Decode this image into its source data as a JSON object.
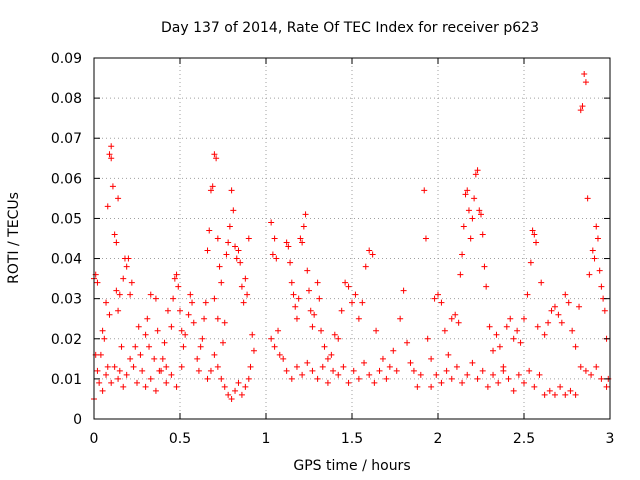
{
  "chart_data": {
    "type": "scatter",
    "title": "Day 137 of 2014, Rate Of TEC Index for receiver p623",
    "xlabel": "GPS time / hours",
    "ylabel": "ROTI / TECUs",
    "xlim": [
      0,
      3
    ],
    "ylim": [
      0,
      0.09
    ],
    "x_ticks": [
      0,
      0.5,
      1,
      1.5,
      2,
      2.5,
      3
    ],
    "x_tick_labels": [
      "0",
      "0.5",
      "1",
      "1.5",
      "2",
      "2.5",
      "3"
    ],
    "y_ticks": [
      0,
      0.01,
      0.02,
      0.03,
      0.04,
      0.05,
      0.06,
      0.07,
      0.08,
      0.09
    ],
    "y_tick_labels": [
      "0",
      "0.01",
      "0.02",
      "0.03",
      "0.04",
      "0.05",
      "0.06",
      "0.07",
      "0.08",
      "0.09"
    ],
    "grid": true,
    "marker": "plus",
    "color": "#ff0000",
    "series": [
      {
        "name": "ROTI",
        "points": [
          [
            0.0,
            0.005
          ],
          [
            0.0,
            0.035
          ],
          [
            0.01,
            0.036
          ],
          [
            0.02,
            0.034
          ],
          [
            0.01,
            0.016
          ],
          [
            0.02,
            0.012
          ],
          [
            0.03,
            0.009
          ],
          [
            0.04,
            0.016
          ],
          [
            0.05,
            0.022
          ],
          [
            0.06,
            0.02
          ],
          [
            0.07,
            0.029
          ],
          [
            0.05,
            0.007
          ],
          [
            0.07,
            0.011
          ],
          [
            0.08,
            0.013
          ],
          [
            0.09,
            0.026
          ],
          [
            0.08,
            0.053
          ],
          [
            0.09,
            0.066
          ],
          [
            0.1,
            0.068
          ],
          [
            0.1,
            0.065
          ],
          [
            0.11,
            0.058
          ],
          [
            0.12,
            0.046
          ],
          [
            0.13,
            0.044
          ],
          [
            0.14,
            0.055
          ],
          [
            0.13,
            0.032
          ],
          [
            0.14,
            0.027
          ],
          [
            0.15,
            0.031
          ],
          [
            0.1,
            0.009
          ],
          [
            0.12,
            0.013
          ],
          [
            0.14,
            0.01
          ],
          [
            0.15,
            0.012
          ],
          [
            0.16,
            0.018
          ],
          [
            0.17,
            0.035
          ],
          [
            0.18,
            0.04
          ],
          [
            0.19,
            0.038
          ],
          [
            0.2,
            0.04
          ],
          [
            0.21,
            0.031
          ],
          [
            0.22,
            0.034
          ],
          [
            0.17,
            0.008
          ],
          [
            0.19,
            0.011
          ],
          [
            0.21,
            0.015
          ],
          [
            0.23,
            0.013
          ],
          [
            0.24,
            0.018
          ],
          [
            0.25,
            0.009
          ],
          [
            0.26,
            0.023
          ],
          [
            0.27,
            0.016
          ],
          [
            0.28,
            0.012
          ],
          [
            0.3,
            0.021
          ],
          [
            0.31,
            0.025
          ],
          [
            0.32,
            0.018
          ],
          [
            0.33,
            0.031
          ],
          [
            0.35,
            0.015
          ],
          [
            0.36,
            0.03
          ],
          [
            0.37,
            0.022
          ],
          [
            0.38,
            0.012
          ],
          [
            0.4,
            0.015
          ],
          [
            0.41,
            0.019
          ],
          [
            0.42,
            0.013
          ],
          [
            0.43,
            0.027
          ],
          [
            0.45,
            0.023
          ],
          [
            0.46,
            0.03
          ],
          [
            0.47,
            0.035
          ],
          [
            0.48,
            0.036
          ],
          [
            0.49,
            0.033
          ],
          [
            0.5,
            0.027
          ],
          [
            0.51,
            0.022
          ],
          [
            0.52,
            0.018
          ],
          [
            0.3,
            0.008
          ],
          [
            0.33,
            0.01
          ],
          [
            0.36,
            0.007
          ],
          [
            0.39,
            0.012
          ],
          [
            0.42,
            0.009
          ],
          [
            0.45,
            0.011
          ],
          [
            0.48,
            0.008
          ],
          [
            0.51,
            0.013
          ],
          [
            0.53,
            0.021
          ],
          [
            0.55,
            0.026
          ],
          [
            0.56,
            0.031
          ],
          [
            0.57,
            0.029
          ],
          [
            0.58,
            0.024
          ],
          [
            0.6,
            0.015
          ],
          [
            0.61,
            0.012
          ],
          [
            0.62,
            0.018
          ],
          [
            0.63,
            0.02
          ],
          [
            0.64,
            0.025
          ],
          [
            0.65,
            0.029
          ],
          [
            0.66,
            0.042
          ],
          [
            0.67,
            0.047
          ],
          [
            0.68,
            0.057
          ],
          [
            0.69,
            0.058
          ],
          [
            0.7,
            0.066
          ],
          [
            0.71,
            0.065
          ],
          [
            0.72,
            0.045
          ],
          [
            0.73,
            0.038
          ],
          [
            0.74,
            0.034
          ],
          [
            0.7,
            0.03
          ],
          [
            0.72,
            0.025
          ],
          [
            0.66,
            0.01
          ],
          [
            0.68,
            0.012
          ],
          [
            0.7,
            0.016
          ],
          [
            0.72,
            0.013
          ],
          [
            0.74,
            0.01
          ],
          [
            0.75,
            0.019
          ],
          [
            0.76,
            0.024
          ],
          [
            0.77,
            0.041
          ],
          [
            0.78,
            0.044
          ],
          [
            0.79,
            0.048
          ],
          [
            0.8,
            0.057
          ],
          [
            0.81,
            0.052
          ],
          [
            0.82,
            0.043
          ],
          [
            0.83,
            0.04
          ],
          [
            0.84,
            0.042
          ],
          [
            0.85,
            0.039
          ],
          [
            0.86,
            0.033
          ],
          [
            0.87,
            0.029
          ],
          [
            0.88,
            0.035
          ],
          [
            0.89,
            0.031
          ],
          [
            0.9,
            0.045
          ],
          [
            0.76,
            0.008
          ],
          [
            0.78,
            0.006
          ],
          [
            0.8,
            0.005
          ],
          [
            0.82,
            0.007
          ],
          [
            0.84,
            0.009
          ],
          [
            0.86,
            0.006
          ],
          [
            0.88,
            0.008
          ],
          [
            0.9,
            0.01
          ],
          [
            0.91,
            0.013
          ],
          [
            0.92,
            0.021
          ],
          [
            0.93,
            0.017
          ],
          [
            1.03,
            0.049
          ],
          [
            1.04,
            0.041
          ],
          [
            1.05,
            0.045
          ],
          [
            1.06,
            0.04
          ],
          [
            1.03,
            0.02
          ],
          [
            1.05,
            0.018
          ],
          [
            1.07,
            0.022
          ],
          [
            1.08,
            0.016
          ],
          [
            1.1,
            0.015
          ],
          [
            1.12,
            0.044
          ],
          [
            1.13,
            0.043
          ],
          [
            1.14,
            0.039
          ],
          [
            1.15,
            0.034
          ],
          [
            1.16,
            0.031
          ],
          [
            1.17,
            0.028
          ],
          [
            1.18,
            0.025
          ],
          [
            1.19,
            0.03
          ],
          [
            1.2,
            0.045
          ],
          [
            1.21,
            0.044
          ],
          [
            1.22,
            0.048
          ],
          [
            1.23,
            0.051
          ],
          [
            1.24,
            0.037
          ],
          [
            1.25,
            0.032
          ],
          [
            1.26,
            0.027
          ],
          [
            1.27,
            0.023
          ],
          [
            1.28,
            0.026
          ],
          [
            1.3,
            0.034
          ],
          [
            1.31,
            0.03
          ],
          [
            1.32,
            0.022
          ],
          [
            1.34,
            0.018
          ],
          [
            1.36,
            0.015
          ],
          [
            1.38,
            0.016
          ],
          [
            1.4,
            0.021
          ],
          [
            1.42,
            0.02
          ],
          [
            1.44,
            0.027
          ],
          [
            1.46,
            0.034
          ],
          [
            1.48,
            0.033
          ],
          [
            1.5,
            0.029
          ],
          [
            1.52,
            0.031
          ],
          [
            1.54,
            0.025
          ],
          [
            1.56,
            0.029
          ],
          [
            1.58,
            0.038
          ],
          [
            1.6,
            0.042
          ],
          [
            1.62,
            0.041
          ],
          [
            1.64,
            0.022
          ],
          [
            1.12,
            0.012
          ],
          [
            1.15,
            0.01
          ],
          [
            1.18,
            0.013
          ],
          [
            1.21,
            0.011
          ],
          [
            1.24,
            0.014
          ],
          [
            1.27,
            0.012
          ],
          [
            1.3,
            0.01
          ],
          [
            1.33,
            0.013
          ],
          [
            1.36,
            0.009
          ],
          [
            1.39,
            0.012
          ],
          [
            1.42,
            0.011
          ],
          [
            1.45,
            0.013
          ],
          [
            1.48,
            0.009
          ],
          [
            1.51,
            0.012
          ],
          [
            1.54,
            0.01
          ],
          [
            1.57,
            0.014
          ],
          [
            1.6,
            0.011
          ],
          [
            1.63,
            0.009
          ],
          [
            1.66,
            0.012
          ],
          [
            1.68,
            0.015
          ],
          [
            1.7,
            0.01
          ],
          [
            1.72,
            0.013
          ],
          [
            1.74,
            0.017
          ],
          [
            1.76,
            0.012
          ],
          [
            1.78,
            0.025
          ],
          [
            1.8,
            0.032
          ],
          [
            1.82,
            0.019
          ],
          [
            1.84,
            0.014
          ],
          [
            1.86,
            0.012
          ],
          [
            1.88,
            0.008
          ],
          [
            1.9,
            0.011
          ],
          [
            1.92,
            0.057
          ],
          [
            1.93,
            0.045
          ],
          [
            1.94,
            0.02
          ],
          [
            1.96,
            0.015
          ],
          [
            1.98,
            0.03
          ],
          [
            2.0,
            0.031
          ],
          [
            2.02,
            0.029
          ],
          [
            2.04,
            0.022
          ],
          [
            2.06,
            0.016
          ],
          [
            2.08,
            0.025
          ],
          [
            2.1,
            0.026
          ],
          [
            2.12,
            0.024
          ],
          [
            2.13,
            0.036
          ],
          [
            2.14,
            0.041
          ],
          [
            2.15,
            0.048
          ],
          [
            2.16,
            0.056
          ],
          [
            2.17,
            0.057
          ],
          [
            2.18,
            0.052
          ],
          [
            2.19,
            0.045
          ],
          [
            2.2,
            0.05
          ],
          [
            2.21,
            0.055
          ],
          [
            2.22,
            0.061
          ],
          [
            2.23,
            0.062
          ],
          [
            2.24,
            0.052
          ],
          [
            2.25,
            0.051
          ],
          [
            2.26,
            0.046
          ],
          [
            2.27,
            0.038
          ],
          [
            2.28,
            0.033
          ],
          [
            2.3,
            0.023
          ],
          [
            2.32,
            0.017
          ],
          [
            2.34,
            0.021
          ],
          [
            2.36,
            0.018
          ],
          [
            2.38,
            0.013
          ],
          [
            2.4,
            0.023
          ],
          [
            2.42,
            0.025
          ],
          [
            2.44,
            0.02
          ],
          [
            2.46,
            0.022
          ],
          [
            2.48,
            0.019
          ],
          [
            2.5,
            0.025
          ],
          [
            2.52,
            0.031
          ],
          [
            2.54,
            0.039
          ],
          [
            2.55,
            0.047
          ],
          [
            2.56,
            0.046
          ],
          [
            2.57,
            0.044
          ],
          [
            2.58,
            0.023
          ],
          [
            2.6,
            0.034
          ],
          [
            2.62,
            0.021
          ],
          [
            2.64,
            0.024
          ],
          [
            2.66,
            0.027
          ],
          [
            2.68,
            0.028
          ],
          [
            2.7,
            0.026
          ],
          [
            2.72,
            0.024
          ],
          [
            2.74,
            0.031
          ],
          [
            2.76,
            0.029
          ],
          [
            2.78,
            0.022
          ],
          [
            2.8,
            0.018
          ],
          [
            2.82,
            0.028
          ],
          [
            2.83,
            0.077
          ],
          [
            2.84,
            0.078
          ],
          [
            2.85,
            0.086
          ],
          [
            2.86,
            0.084
          ],
          [
            2.87,
            0.055
          ],
          [
            2.88,
            0.036
          ],
          [
            2.9,
            0.042
          ],
          [
            2.91,
            0.04
          ],
          [
            2.92,
            0.048
          ],
          [
            2.93,
            0.045
          ],
          [
            2.94,
            0.037
          ],
          [
            2.95,
            0.033
          ],
          [
            2.96,
            0.03
          ],
          [
            2.97,
            0.027
          ],
          [
            2.98,
            0.02
          ],
          [
            2.99,
            0.01
          ],
          [
            1.96,
            0.008
          ],
          [
            1.99,
            0.011
          ],
          [
            2.02,
            0.009
          ],
          [
            2.05,
            0.012
          ],
          [
            2.08,
            0.01
          ],
          [
            2.11,
            0.013
          ],
          [
            2.14,
            0.009
          ],
          [
            2.17,
            0.011
          ],
          [
            2.2,
            0.014
          ],
          [
            2.23,
            0.01
          ],
          [
            2.26,
            0.012
          ],
          [
            2.29,
            0.008
          ],
          [
            2.32,
            0.011
          ],
          [
            2.35,
            0.009
          ],
          [
            2.38,
            0.012
          ],
          [
            2.41,
            0.01
          ],
          [
            2.44,
            0.007
          ],
          [
            2.47,
            0.011
          ],
          [
            2.5,
            0.009
          ],
          [
            2.53,
            0.012
          ],
          [
            2.56,
            0.008
          ],
          [
            2.59,
            0.011
          ],
          [
            2.62,
            0.006
          ],
          [
            2.65,
            0.007
          ],
          [
            2.68,
            0.006
          ],
          [
            2.71,
            0.008
          ],
          [
            2.74,
            0.006
          ],
          [
            2.77,
            0.007
          ],
          [
            2.8,
            0.006
          ],
          [
            2.83,
            0.013
          ],
          [
            2.86,
            0.012
          ],
          [
            2.89,
            0.011
          ],
          [
            2.92,
            0.013
          ],
          [
            2.95,
            0.01
          ],
          [
            2.98,
            0.008
          ]
        ]
      }
    ]
  }
}
